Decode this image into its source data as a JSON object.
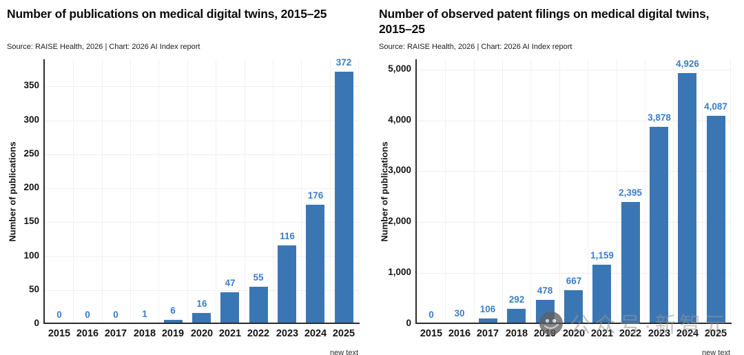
{
  "page": {
    "background": "#ffffff"
  },
  "footnote": "new text",
  "watermark": {
    "icon": "wechat-chat-bubble-icon",
    "text": "公众号·新智元",
    "color": "#969696"
  },
  "chart_data": [
    {
      "type": "bar",
      "title": "Number of publications on medical digital twins, 2015–25",
      "source": "Source: RAISE Health, 2026 | Chart: 2026 AI Index report",
      "xlabel": "",
      "ylabel": "Number of publications",
      "categories": [
        "2015",
        "2016",
        "2017",
        "2018",
        "2019",
        "2020",
        "2021",
        "2022",
        "2023",
        "2024",
        "2025"
      ],
      "values": [
        0,
        0,
        0,
        1,
        6,
        16,
        47,
        55,
        116,
        176,
        372
      ],
      "value_labels": [
        "0",
        "0",
        "0",
        "1",
        "6",
        "16",
        "47",
        "55",
        "116",
        "176",
        "372"
      ],
      "ylim": [
        0,
        390
      ],
      "yticks": [
        {
          "value": 0,
          "label": "0"
        },
        {
          "value": 50,
          "label": "50"
        },
        {
          "value": 100,
          "label": "100"
        },
        {
          "value": 150,
          "label": "150"
        },
        {
          "value": 200,
          "label": "200"
        },
        {
          "value": 250,
          "label": "250"
        },
        {
          "value": 300,
          "label": "300"
        },
        {
          "value": 350,
          "label": "350"
        }
      ],
      "grid": true,
      "legend": "none",
      "bar_color": "#3b76b4",
      "value_label_color": "#3a7dc6"
    },
    {
      "type": "bar",
      "title": "Number of observed patent filings on medical digital twins, 2015–25",
      "source": "Source: RAISE Health, 2026 | Chart: 2026 AI Index report",
      "xlabel": "",
      "ylabel": "Number of publications",
      "categories": [
        "2015",
        "2016",
        "2017",
        "2018",
        "2019",
        "2020",
        "2021",
        "2022",
        "2023",
        "2024",
        "2025"
      ],
      "values": [
        0,
        30,
        106,
        292,
        478,
        667,
        1159,
        2395,
        3878,
        4926,
        4087
      ],
      "value_labels": [
        "0",
        "30",
        "106",
        "292",
        "478",
        "667",
        "1,159",
        "2,395",
        "3,878",
        "4,926",
        "4,087"
      ],
      "ylim": [
        0,
        5200
      ],
      "yticks": [
        {
          "value": 0,
          "label": "0"
        },
        {
          "value": 1000,
          "label": "1,000"
        },
        {
          "value": 2000,
          "label": "2,000"
        },
        {
          "value": 3000,
          "label": "3,000"
        },
        {
          "value": 4000,
          "label": "4,000"
        },
        {
          "value": 5000,
          "label": "5,000"
        }
      ],
      "grid": true,
      "legend": "none",
      "bar_color": "#3b76b4",
      "value_label_color": "#3a7dc6"
    }
  ]
}
